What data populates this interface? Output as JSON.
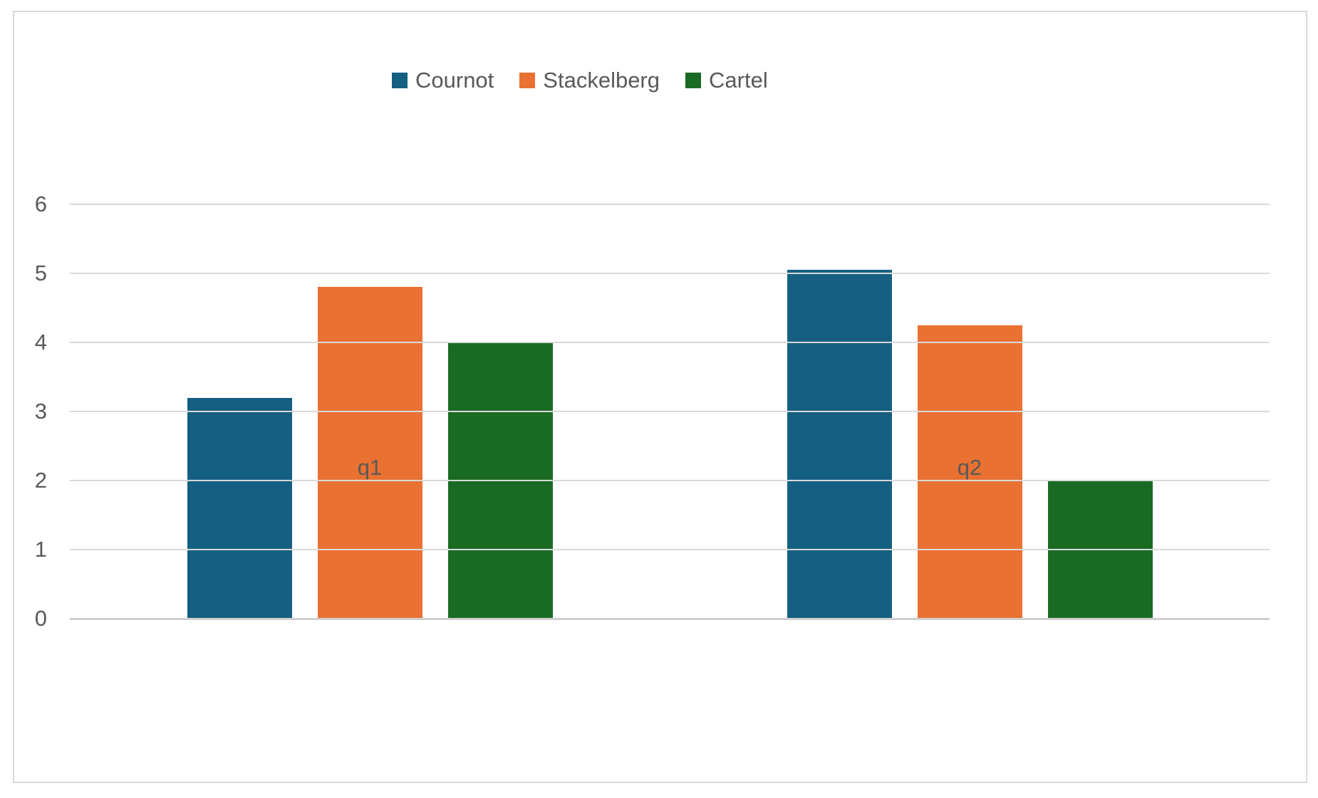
{
  "chart_data": {
    "type": "bar",
    "title": "",
    "xlabel": "",
    "ylabel": "",
    "categories": [
      "q1",
      "q2"
    ],
    "series": [
      {
        "name": "Cournot",
        "color": "#156082",
        "values": [
          3.2,
          5.05
        ]
      },
      {
        "name": "Stackelberg",
        "color": "#E97132",
        "values": [
          4.8,
          4.25
        ]
      },
      {
        "name": "Cartel",
        "color": "#196B24",
        "values": [
          4.0,
          2.0
        ]
      }
    ],
    "ylim": [
      0,
      6
    ],
    "yticks": [
      0,
      1,
      2,
      3,
      4,
      5,
      6
    ],
    "grid": true,
    "legend_position": "top"
  },
  "styles": {
    "text_color": "#595959",
    "gridline_color": "#D9D9D9",
    "axis_line_color": "#CFCFCF",
    "border_color": "#D9D9D9",
    "background": "#FFFFFF"
  }
}
